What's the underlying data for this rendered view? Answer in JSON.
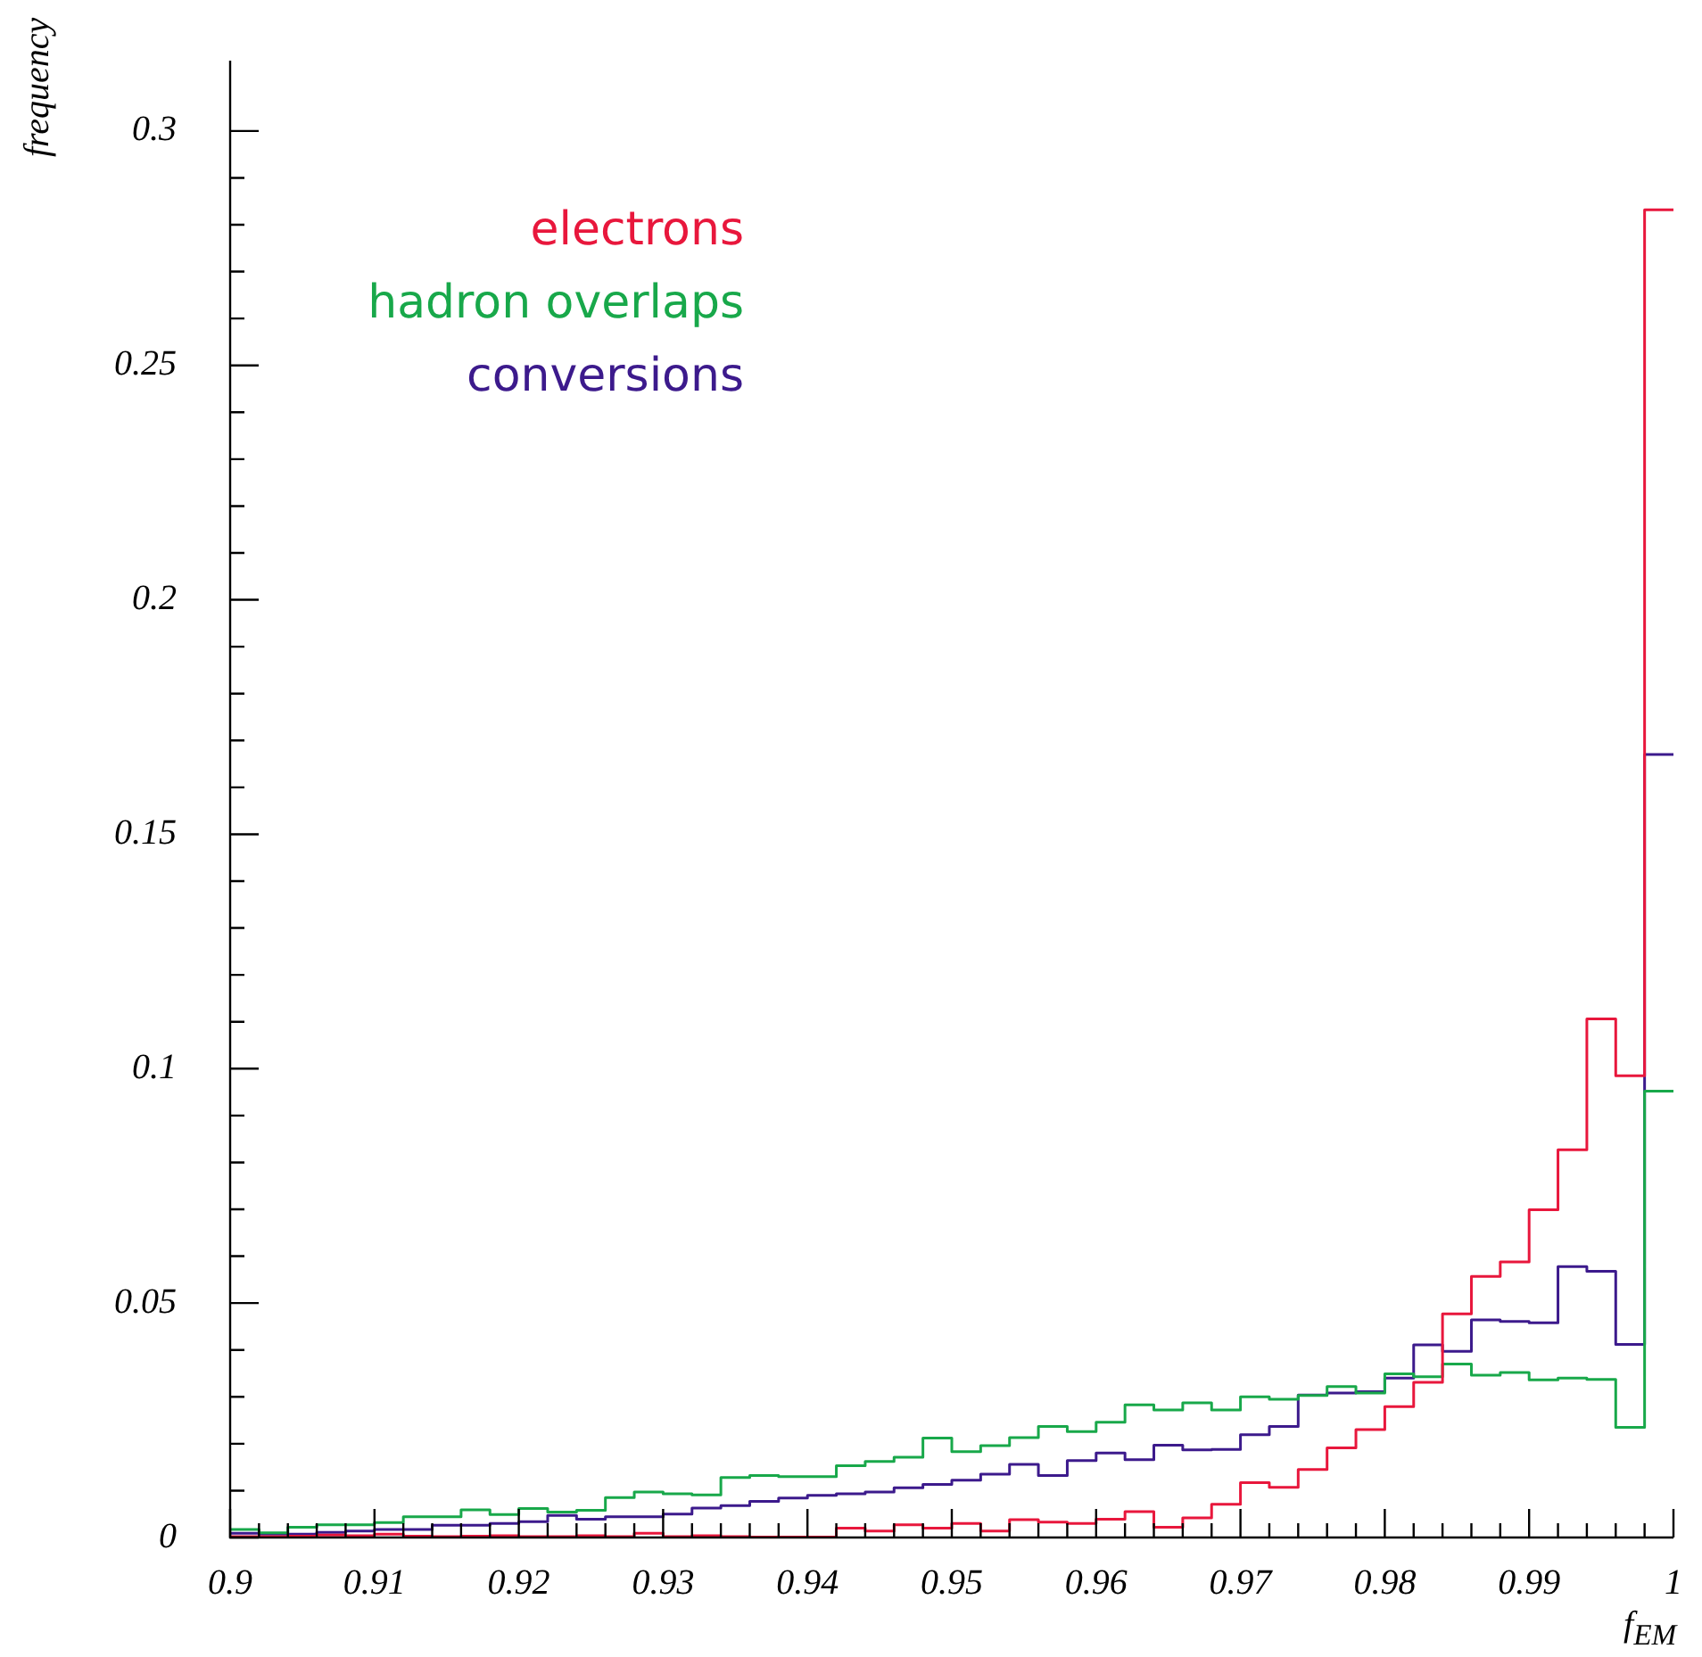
{
  "chart_data": {
    "type": "histogram",
    "xlabel": "f$_{EM}$",
    "ylabel": "frequency",
    "bins": [
      0.9,
      0.902,
      0.904,
      0.906,
      0.908,
      0.91,
      0.912,
      0.914,
      0.916,
      0.918,
      0.92,
      0.922,
      0.924,
      0.926,
      0.928,
      0.93,
      0.932,
      0.934,
      0.936,
      0.938,
      0.94,
      0.942,
      0.944,
      0.946,
      0.948,
      0.95,
      0.952,
      0.954,
      0.956,
      0.958,
      0.96,
      0.962,
      0.964,
      0.966,
      0.968,
      0.97,
      0.972,
      0.974,
      0.976,
      0.978,
      0.98,
      0.982,
      0.984,
      0.986,
      0.988,
      0.99,
      0.992,
      0.994,
      0.996,
      0.998,
      1.0
    ],
    "series": [
      {
        "name": "electrons",
        "color": "#e8173c",
        "values": [
          0.0002,
          0.0002,
          0.0003,
          0.0005,
          0.0004,
          0.0007,
          0.0003,
          0.0002,
          0.0003,
          0.0004,
          0.0002,
          0.0002,
          0.0004,
          0.0002,
          0.0009,
          0.0002,
          0.0004,
          0.0002,
          0.0001,
          0.0001,
          0.0001,
          0.002,
          0.0014,
          0.0027,
          0.002,
          0.003,
          0.0014,
          0.0038,
          0.0033,
          0.003,
          0.0039,
          0.0055,
          0.0022,
          0.0042,
          0.0071,
          0.0117,
          0.0107,
          0.0145,
          0.0191,
          0.023,
          0.0279,
          0.0331,
          0.0477,
          0.0557,
          0.0588,
          0.0699,
          0.0827,
          0.1106,
          0.0985,
          0.2832
        ]
      },
      {
        "name": "hadron overlaps",
        "color": "#18a84a",
        "values": [
          0.0017,
          0.001,
          0.0022,
          0.0027,
          0.0027,
          0.0032,
          0.0044,
          0.0044,
          0.0059,
          0.0049,
          0.0062,
          0.0054,
          0.0058,
          0.0085,
          0.0097,
          0.0093,
          0.0091,
          0.0128,
          0.0132,
          0.013,
          0.013,
          0.0153,
          0.0162,
          0.0171,
          0.0212,
          0.0183,
          0.0196,
          0.0213,
          0.0237,
          0.0226,
          0.0246,
          0.0283,
          0.0272,
          0.0287,
          0.0272,
          0.03,
          0.0295,
          0.0303,
          0.0322,
          0.0308,
          0.0349,
          0.0343,
          0.037,
          0.0346,
          0.0352,
          0.0336,
          0.034,
          0.0337,
          0.0235,
          0.0952
        ]
      },
      {
        "name": "conversions",
        "color": "#3c1a8c",
        "values": [
          0.0009,
          0.0007,
          0.0007,
          0.0011,
          0.0014,
          0.0017,
          0.0017,
          0.0026,
          0.0026,
          0.003,
          0.0034,
          0.0047,
          0.0039,
          0.0044,
          0.0044,
          0.005,
          0.0063,
          0.0068,
          0.0077,
          0.0084,
          0.009,
          0.0093,
          0.0097,
          0.0106,
          0.0113,
          0.0122,
          0.0135,
          0.0156,
          0.0132,
          0.0164,
          0.018,
          0.0166,
          0.0197,
          0.0187,
          0.0188,
          0.0219,
          0.0237,
          0.0304,
          0.0308,
          0.0311,
          0.034,
          0.0411,
          0.0397,
          0.0464,
          0.0461,
          0.0458,
          0.0578,
          0.0568,
          0.0412,
          0.167
        ]
      }
    ],
    "xlim": [
      0.9,
      1.0
    ],
    "ylim": [
      0,
      0.315
    ],
    "xticks": [
      0.9,
      {
        "value": 0.902,
        "label": null
      },
      {
        "value": 0.904,
        "label": null
      },
      {
        "value": 0.906,
        "label": null
      },
      {
        "value": 0.908,
        "label": null
      },
      0.91,
      {
        "value": 0.912,
        "label": null
      },
      {
        "value": 0.914,
        "label": null
      },
      {
        "value": 0.916,
        "label": null
      },
      {
        "value": 0.918,
        "label": null
      },
      0.92,
      {
        "value": 0.922,
        "label": null
      },
      {
        "value": 0.924,
        "label": null
      },
      {
        "value": 0.926,
        "label": null
      },
      {
        "value": 0.928,
        "label": null
      },
      0.93,
      {
        "value": 0.932,
        "label": null
      },
      {
        "value": 0.934,
        "label": null
      },
      {
        "value": 0.936,
        "label": null
      },
      {
        "value": 0.938,
        "label": null
      },
      0.94,
      {
        "value": 0.942,
        "label": null
      },
      {
        "value": 0.944,
        "label": null
      },
      {
        "value": 0.946,
        "label": null
      },
      {
        "value": 0.948,
        "label": null
      },
      0.95,
      {
        "value": 0.952,
        "label": null
      },
      {
        "value": 0.954,
        "label": null
      },
      {
        "value": 0.956,
        "label": null
      },
      {
        "value": 0.958,
        "label": null
      },
      0.96,
      {
        "value": 0.962,
        "label": null
      },
      {
        "value": 0.964,
        "label": null
      },
      {
        "value": 0.966,
        "label": null
      },
      {
        "value": 0.968,
        "label": null
      },
      0.97,
      {
        "value": 0.972,
        "label": null
      },
      {
        "value": 0.974,
        "label": null
      },
      {
        "value": 0.976,
        "label": null
      },
      {
        "value": 0.978,
        "label": null
      },
      0.98,
      {
        "value": 0.982,
        "label": null
      },
      {
        "value": 0.984,
        "label": null
      },
      {
        "value": 0.986,
        "label": null
      },
      {
        "value": 0.988,
        "label": null
      },
      0.99,
      {
        "value": 0.992,
        "label": null
      },
      {
        "value": 0.994,
        "label": null
      },
      {
        "value": 0.996,
        "label": null
      },
      {
        "value": 0.998,
        "label": null
      },
      1
    ],
    "yticks": [
      0,
      {
        "value": 0.01,
        "label": null
      },
      {
        "value": 0.02,
        "label": null
      },
      {
        "value": 0.03,
        "label": null
      },
      {
        "value": 0.04,
        "label": null
      },
      0.05,
      {
        "value": 0.06,
        "label": null
      },
      {
        "value": 0.07,
        "label": null
      },
      {
        "value": 0.08,
        "label": null
      },
      {
        "value": 0.09,
        "label": null
      },
      0.1,
      {
        "value": 0.11,
        "label": null
      },
      {
        "value": 0.12,
        "label": null
      },
      {
        "value": 0.13,
        "label": null
      },
      {
        "value": 0.14,
        "label": null
      },
      0.15,
      {
        "value": 0.16,
        "label": null
      },
      {
        "value": 0.17,
        "label": null
      },
      {
        "value": 0.18,
        "label": null
      },
      {
        "value": 0.19,
        "label": null
      },
      0.2,
      {
        "value": 0.21,
        "label": null
      },
      {
        "value": 0.22,
        "label": null
      },
      {
        "value": 0.23,
        "label": null
      },
      {
        "value": 0.24,
        "label": null
      },
      0.25,
      {
        "value": 0.26,
        "label": null
      },
      {
        "value": 0.27,
        "label": null
      },
      {
        "value": 0.28,
        "label": null
      },
      {
        "value": 0.29,
        "label": null
      },
      0.3
    ],
    "legend": "top left",
    "grid": false
  }
}
